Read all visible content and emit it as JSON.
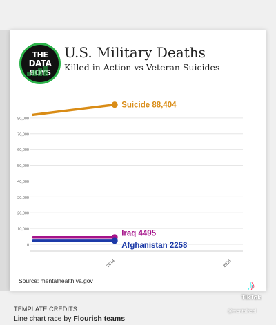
{
  "header": {
    "logo_text": [
      "THE",
      "DATA",
      "BOYS"
    ],
    "title": "U.S. Military Deaths",
    "subtitle": "Killed in Action vs Veteran Suicides"
  },
  "source": {
    "label": "Source: ",
    "link": "mentalhealth.va.gov"
  },
  "credits": {
    "heading": "TEMPLATE CREDITS",
    "text_prefix": "Line chart race by ",
    "text_bold": "Flourish teams"
  },
  "watermark": {
    "icon": "tiktok-note-icon",
    "brand": "TikTok",
    "handle": "@mentalheal"
  },
  "colors": {
    "suicide": "#d98c16",
    "iraq": "#a5138a",
    "afghanistan": "#1c3aa8",
    "logo_ring": "#2cb34a"
  },
  "chart_data": {
    "type": "line",
    "title": "U.S. Military Deaths",
    "subtitle": "Killed in Action vs Veteran Suicides",
    "xlabel": "",
    "ylabel": "",
    "xlim": [
      2013.3,
      2015.1
    ],
    "ylim": [
      0,
      90000
    ],
    "x_ticks": [
      2014,
      2015
    ],
    "x_tick_labels": [
      "2014",
      "2015"
    ],
    "y_ticks": [
      0,
      10000,
      20000,
      30000,
      40000,
      50000,
      60000,
      70000,
      80000
    ],
    "y_tick_labels": [
      "0",
      "10,000",
      "20,000",
      "30,000",
      "40,000",
      "50,000",
      "60,000",
      "70,000",
      "80,000"
    ],
    "grid": true,
    "series": [
      {
        "name": "Suicide",
        "label": "Suicide 88,404",
        "color": "#d98c16",
        "x": [
          2013.3,
          2014
        ],
        "y": [
          82000,
          88404
        ]
      },
      {
        "name": "Iraq",
        "label": "Iraq 4495",
        "color": "#a5138a",
        "x": [
          2013.3,
          2014
        ],
        "y": [
          4495,
          4495
        ]
      },
      {
        "name": "Afghanistan",
        "label": "Afghanistan 2258",
        "color": "#1c3aa8",
        "x": [
          2013.3,
          2014
        ],
        "y": [
          2258,
          2258
        ]
      }
    ]
  }
}
